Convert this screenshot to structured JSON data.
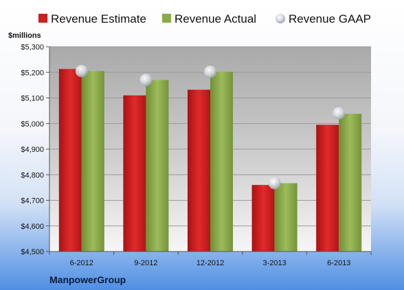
{
  "chart_data": {
    "type": "bar",
    "unit_label": "$millions",
    "company": "ManpowerGroup",
    "categories": [
      "6-2012",
      "9-2012",
      "12-2012",
      "3-2013",
      "6-2013"
    ],
    "ylim": [
      4500,
      5300
    ],
    "yticks": [
      "$4,500",
      "$4,600",
      "$4,700",
      "$4,800",
      "$4,900",
      "$5,000",
      "$5,100",
      "$5,200",
      "$5,300"
    ],
    "ytick_values": [
      4500,
      4600,
      4700,
      4800,
      4900,
      5000,
      5100,
      5200,
      5300
    ],
    "grid": true,
    "legend_position": "top",
    "series": [
      {
        "name": "Revenue Estimate",
        "type": "bar",
        "color": "#cc1f1f",
        "values": [
          5213,
          5110,
          5132,
          4760,
          4995
        ]
      },
      {
        "name": "Revenue Actual",
        "type": "bar",
        "color": "#8aaa48",
        "values": [
          5205,
          5170,
          5202,
          4767,
          5038
        ]
      },
      {
        "name": "Revenue GAAP",
        "type": "marker",
        "color": "#c8ccd6",
        "values": [
          5205,
          5170,
          5202,
          4767,
          5040
        ]
      }
    ]
  }
}
